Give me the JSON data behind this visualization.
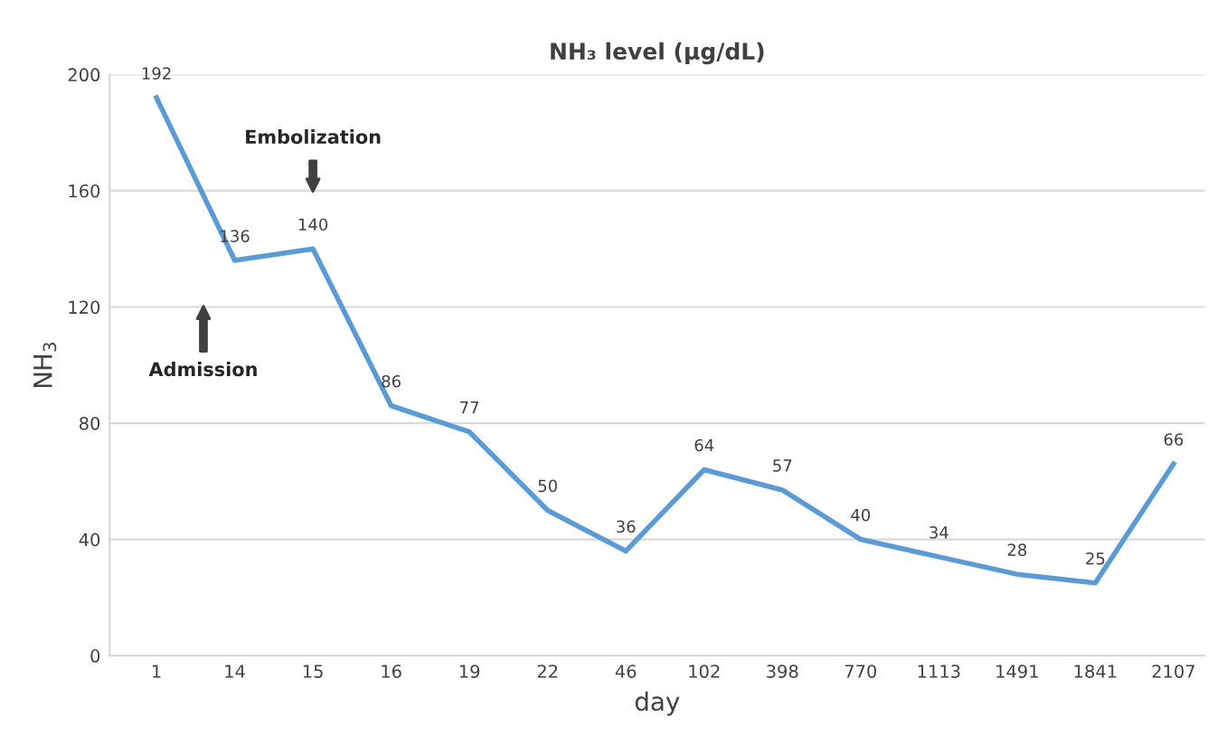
{
  "chart_data": {
    "type": "line",
    "title": "NH₃ level (µg/dL)",
    "xlabel": "day",
    "ylabel": "NH$_{3}$",
    "categories": [
      "1",
      "14",
      "15",
      "16",
      "19",
      "22",
      "46",
      "102",
      "398",
      "770",
      "1113",
      "1491",
      "1841",
      "2107"
    ],
    "series": [
      {
        "color": "#5b9bd5",
        "values": [
          192,
          136,
          140,
          86,
          77,
          50,
          36,
          64,
          57,
          40,
          34,
          28,
          25,
          66
        ]
      }
    ],
    "ylim": [
      0,
      200
    ],
    "yticks": [
      0,
      40,
      80,
      120,
      160,
      200
    ],
    "grid": "y",
    "data_labels": true,
    "marker": "none",
    "line_style": "solid",
    "annotations": [
      "Embolization",
      "Admission"
    ]
  }
}
